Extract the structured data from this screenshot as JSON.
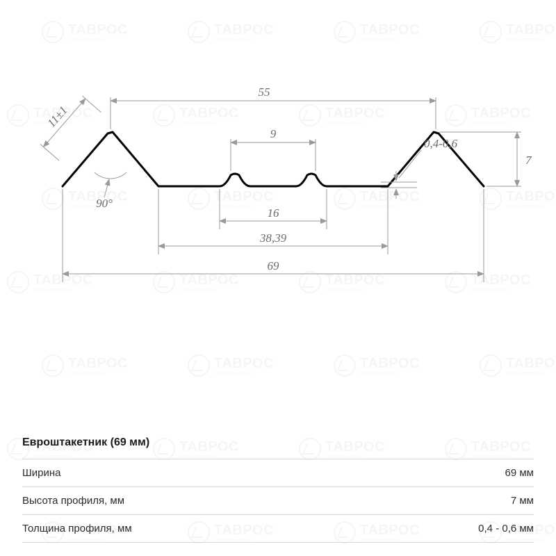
{
  "diagram": {
    "type": "technical-profile",
    "background_color": "#ffffff",
    "profile_color": "#000000",
    "profile_stroke_width": 3,
    "dim_color": "#9a9a9a",
    "dim_text_color": "#6a6a6a",
    "dim_fontsize": 17,
    "dims": {
      "top_span": "55",
      "left_slope": "11±1",
      "angle": "90°",
      "bump_top": "9",
      "bump_span": "16",
      "mid_span": "38,39",
      "full_span": "69",
      "thickness": "0,4-0,6",
      "height": "7"
    }
  },
  "spec": {
    "title": "Евроштакетник (69 мм)",
    "rows": [
      {
        "label": "Ширина",
        "value": "69 мм"
      },
      {
        "label": "Высота профиля, мм",
        "value": "7 мм"
      },
      {
        "label": "Толщина профиля, мм",
        "value": "0,4 - 0,6 мм"
      }
    ]
  },
  "watermark": {
    "text": "ТАВРОС",
    "sub": "ГРУППА КОМПАНИЙ",
    "opacity": 0.035
  }
}
